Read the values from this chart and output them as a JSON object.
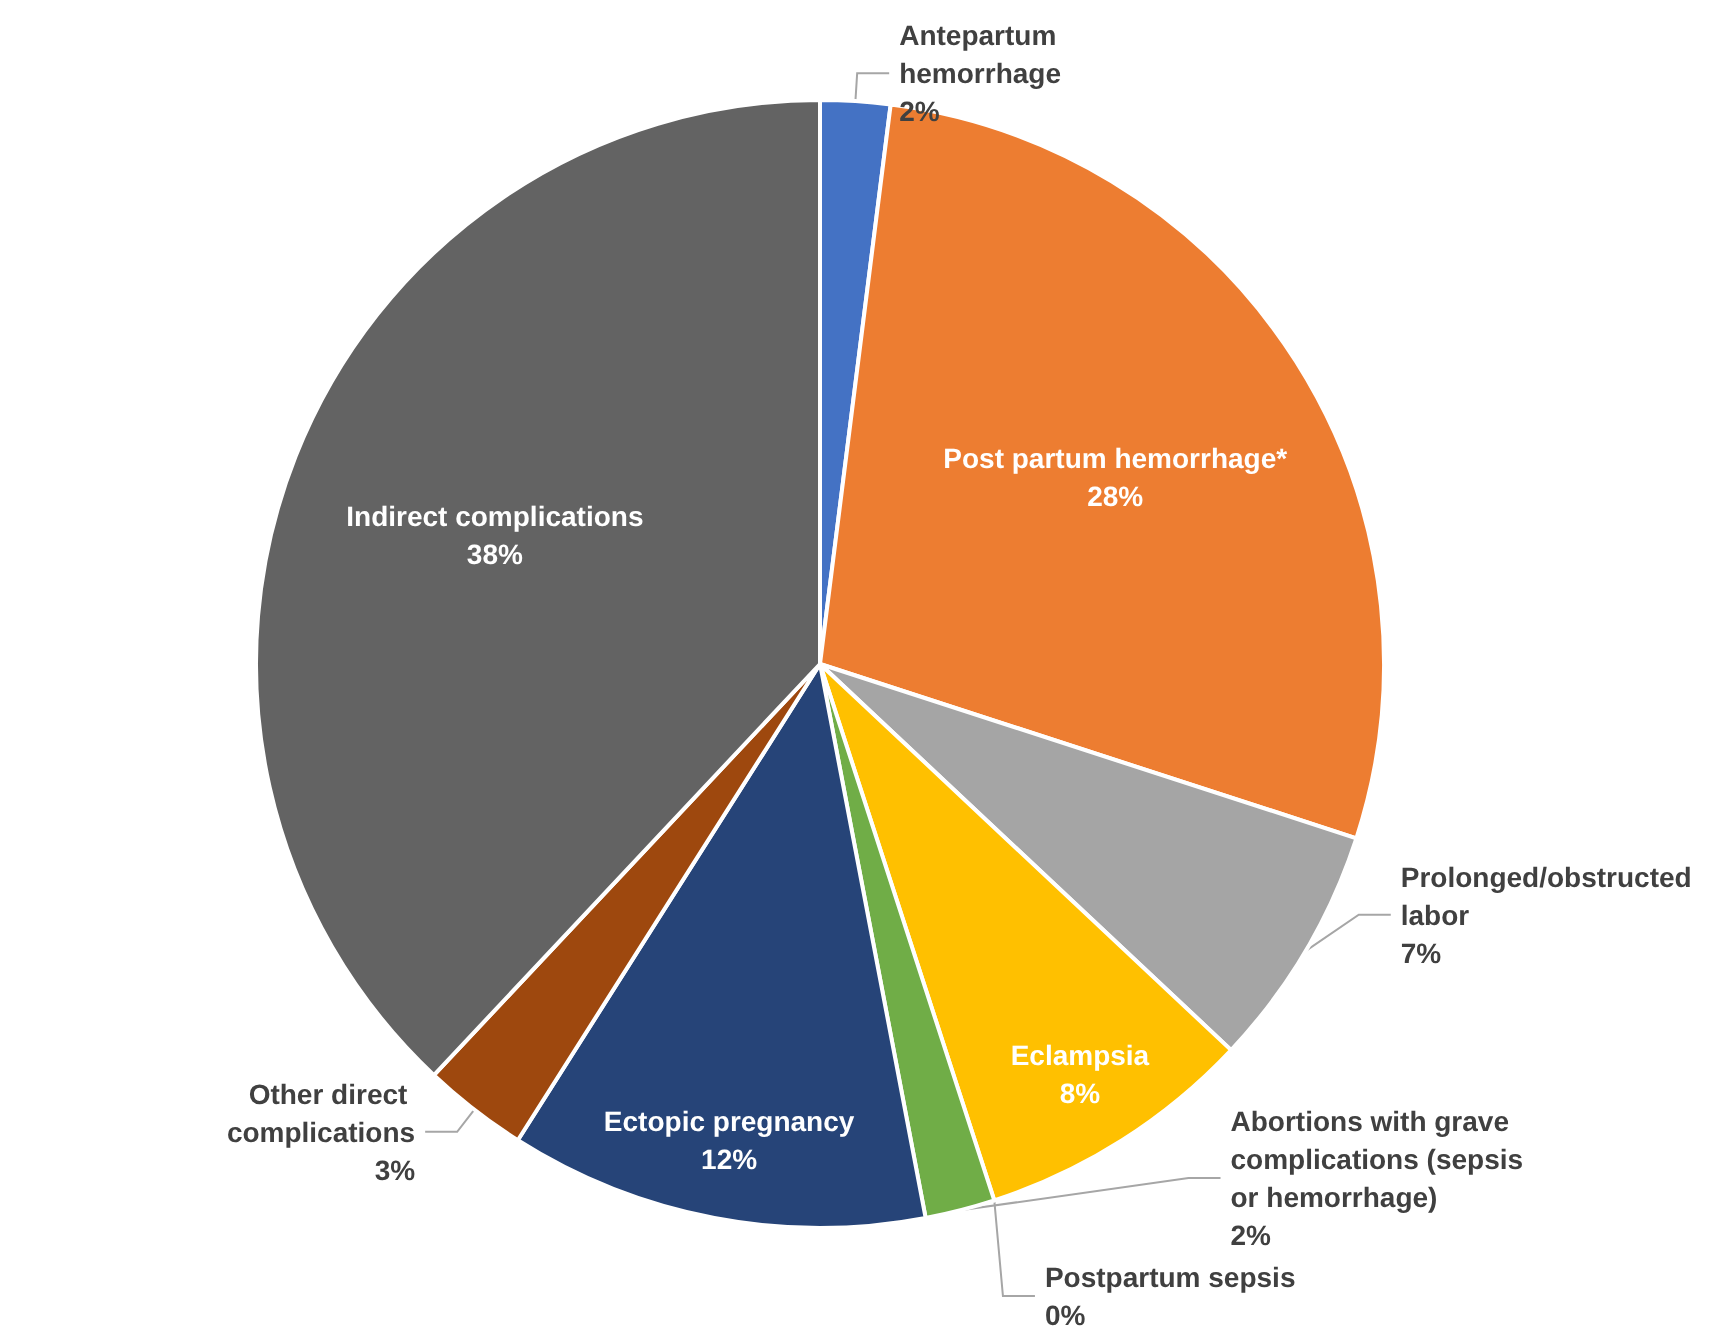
{
  "chart_data": {
    "type": "pie",
    "categories": [
      "Antepartum hemorrhage",
      "Post partum hemorrhage*",
      "Prolonged/obstructed labor",
      "Eclampsia",
      "Postpartum sepsis",
      "Abortions with grave complications (sepsis or hemorrhage)",
      "Ectopic pregnancy",
      "Other direct complications",
      "Indirect complications"
    ],
    "values": [
      2,
      28,
      7,
      8,
      0,
      2,
      12,
      3,
      38
    ],
    "value_labels": [
      "2%",
      "28%",
      "7%",
      "8%",
      "0%",
      "2%",
      "12%",
      "3%",
      "38%"
    ],
    "colors": [
      "#4472c4",
      "#ed7d31",
      "#a5a5a5",
      "#ffc000",
      "#5b9bd5",
      "#70ad47",
      "#264478",
      "#9e480e",
      "#636363"
    ],
    "legend": false
  }
}
